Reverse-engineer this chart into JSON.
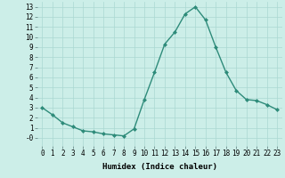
{
  "x": [
    0,
    1,
    2,
    3,
    4,
    5,
    6,
    7,
    8,
    9,
    10,
    11,
    12,
    13,
    14,
    15,
    16,
    17,
    18,
    19,
    20,
    21,
    22,
    23
  ],
  "y": [
    3.0,
    2.3,
    1.5,
    1.1,
    0.7,
    0.6,
    0.4,
    0.3,
    0.2,
    0.9,
    3.8,
    6.5,
    9.3,
    10.5,
    12.3,
    13.0,
    11.7,
    9.0,
    6.5,
    4.7,
    3.8,
    3.7,
    3.3,
    2.8
  ],
  "line_color": "#2e8b7a",
  "marker": "D",
  "marker_size": 2.0,
  "bg_color": "#cceee8",
  "grid_color": "#aad8d2",
  "xlabel": "Humidex (Indice chaleur)",
  "xlim": [
    -0.5,
    23.5
  ],
  "ylim": [
    -0.8,
    13.5
  ],
  "xtick_labels": [
    "0",
    "1",
    "2",
    "3",
    "4",
    "5",
    "6",
    "7",
    "8",
    "9",
    "10",
    "11",
    "12",
    "13",
    "14",
    "15",
    "16",
    "17",
    "18",
    "19",
    "20",
    "21",
    "22",
    "23"
  ],
  "ytick_values": [
    0,
    1,
    2,
    3,
    4,
    5,
    6,
    7,
    8,
    9,
    10,
    11,
    12,
    13
  ],
  "ytick_labels": [
    "-0",
    "1",
    "2",
    "3",
    "4",
    "5",
    "6",
    "7",
    "8",
    "9",
    "10",
    "11",
    "12",
    "13"
  ],
  "xlabel_fontsize": 6.5,
  "tick_fontsize": 5.5,
  "line_width": 1.0
}
